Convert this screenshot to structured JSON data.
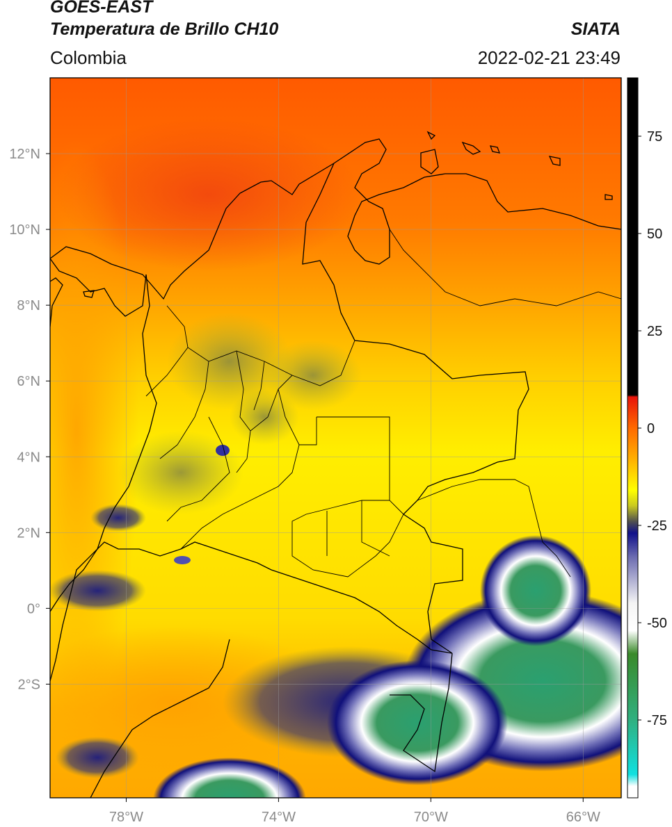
{
  "header": {
    "title_line1": "GOES-EAST",
    "title_line2": "Temperatura de Brillo CH10",
    "region": "Colombia",
    "organization": "SIATA",
    "timestamp": "2022-02-21 23:49"
  },
  "map": {
    "lon_range": [
      -80,
      -65
    ],
    "lat_range": [
      -5,
      14
    ],
    "lon_ticks": [
      {
        "value": -78,
        "label": "78°W"
      },
      {
        "value": -74,
        "label": "74°W"
      },
      {
        "value": -70,
        "label": "70°W"
      },
      {
        "value": -66,
        "label": "66°W"
      }
    ],
    "lat_ticks": [
      {
        "value": 12,
        "label": "12°N"
      },
      {
        "value": 10,
        "label": "10°N"
      },
      {
        "value": 8,
        "label": "8°N"
      },
      {
        "value": 6,
        "label": "6°N"
      },
      {
        "value": 4,
        "label": "4°N"
      },
      {
        "value": 2,
        "label": "2°N"
      },
      {
        "value": 0,
        "label": "0°"
      },
      {
        "value": -2,
        "label": "2°S"
      }
    ],
    "grid": true
  },
  "colorbar": {
    "range": [
      -95,
      90
    ],
    "ticks": [
      {
        "value": 75,
        "label": "75"
      },
      {
        "value": 50,
        "label": "50"
      },
      {
        "value": 25,
        "label": "25"
      },
      {
        "value": 0,
        "label": "0"
      },
      {
        "value": -25,
        "label": "-25"
      },
      {
        "value": -50,
        "label": "-50"
      },
      {
        "value": -75,
        "label": "-75"
      }
    ],
    "stops": [
      {
        "value": 90,
        "color": "#000000"
      },
      {
        "value": 8.5,
        "color": "#000000"
      },
      {
        "value": 8,
        "color": "#e8140a"
      },
      {
        "value": 0,
        "color": "#ff6a00"
      },
      {
        "value": -8,
        "color": "#ffb000"
      },
      {
        "value": -16,
        "color": "#ffff00"
      },
      {
        "value": -20,
        "color": "#c8c820"
      },
      {
        "value": -24,
        "color": "#505050"
      },
      {
        "value": -27,
        "color": "#10108a"
      },
      {
        "value": -33,
        "color": "#6a6ab0"
      },
      {
        "value": -45,
        "color": "#f4f4f4"
      },
      {
        "value": -52,
        "color": "#ffffff"
      },
      {
        "value": -58,
        "color": "#3a8a2a"
      },
      {
        "value": -75,
        "color": "#30b080"
      },
      {
        "value": -89,
        "color": "#10e0e0"
      },
      {
        "value": -92,
        "color": "#ffffff"
      }
    ]
  }
}
